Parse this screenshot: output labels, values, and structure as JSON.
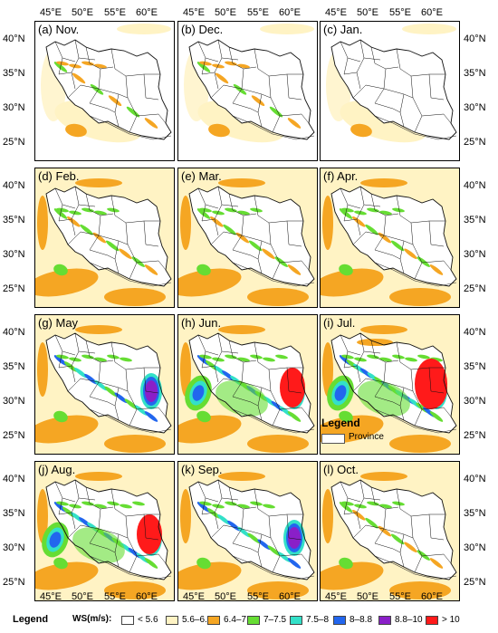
{
  "panels": [
    {
      "label": "(a) Nov.",
      "intensity": 1
    },
    {
      "label": "(b) Dec.",
      "intensity": 1
    },
    {
      "label": "(c) Jan.",
      "intensity": 0
    },
    {
      "label": "(d) Feb.",
      "intensity": 2
    },
    {
      "label": "(e) Mar.",
      "intensity": 2
    },
    {
      "label": "(f) Apr.",
      "intensity": 2
    },
    {
      "label": "(g) May",
      "intensity": 3
    },
    {
      "label": "(h) Jun.",
      "intensity": 4
    },
    {
      "label": "(i) Jul.",
      "intensity": 5
    },
    {
      "label": "(j) Aug.",
      "intensity": 4
    },
    {
      "label": "(k) Sep.",
      "intensity": 3
    },
    {
      "label": "(l) Oct.",
      "intensity": 2
    }
  ],
  "axes": {
    "lon_labels": [
      "45°E",
      "50°E",
      "55°E",
      "60°E"
    ],
    "lat_labels": [
      "40°N",
      "35°N",
      "30°N",
      "25°N"
    ]
  },
  "inmap_legend": {
    "title": "Legend",
    "item": "Province"
  },
  "legend": {
    "title": "Legend",
    "var": "WS(m/s):",
    "classes": [
      {
        "label": "< 5.6",
        "color": "#ffffff"
      },
      {
        "label": "5.6–6.4",
        "color": "#fff3c4"
      },
      {
        "label": "6.4–7",
        "color": "#f5a623"
      },
      {
        "label": "7–7.5",
        "color": "#66dd33"
      },
      {
        "label": "7.5–8",
        "color": "#33e0c8"
      },
      {
        "label": "8–8.8",
        "color": "#2266ee"
      },
      {
        "label": "8.8–10",
        "color": "#8a1fc8"
      },
      {
        "label": "> 10",
        "color": "#ff1a1a"
      }
    ]
  }
}
